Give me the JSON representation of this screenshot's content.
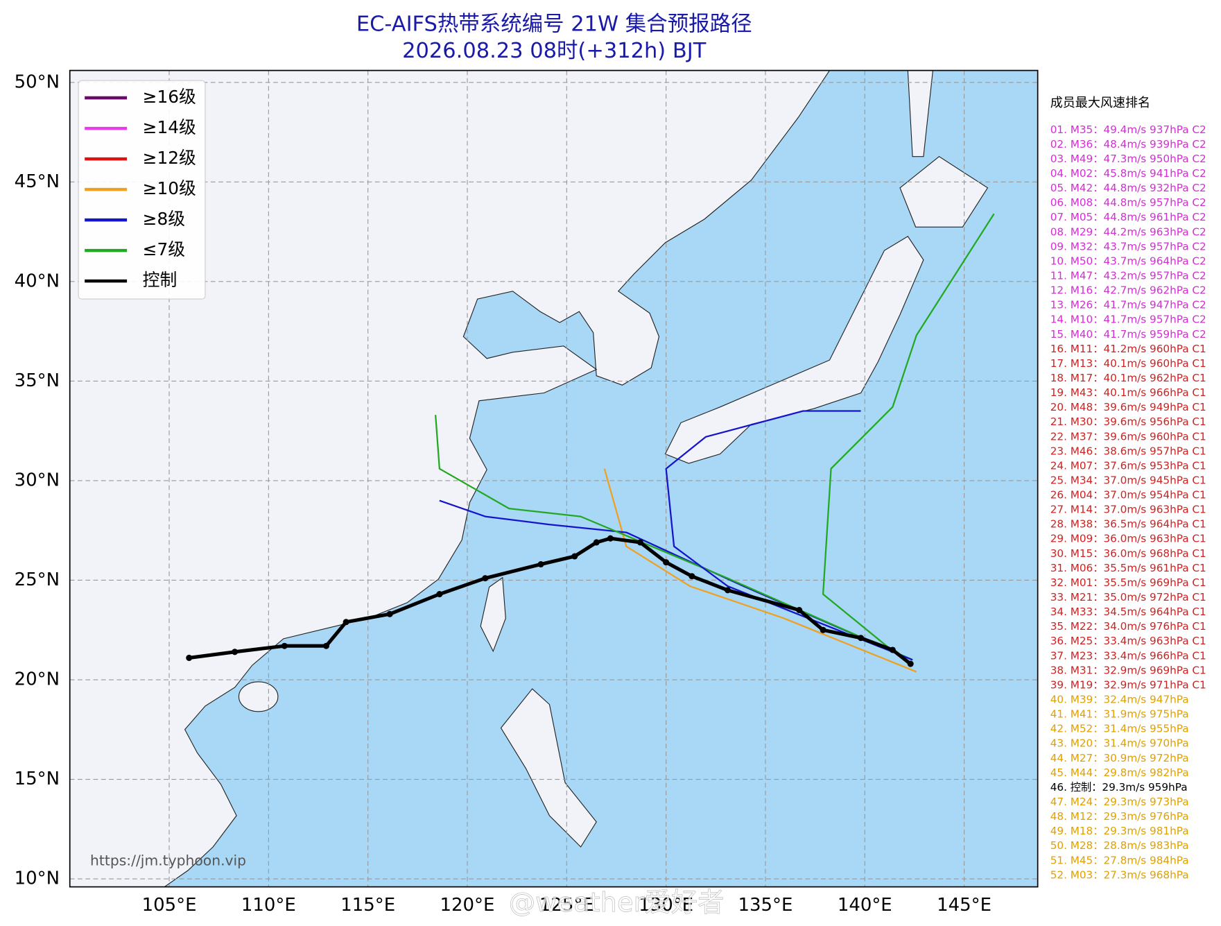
{
  "chart_data": {
    "type": "track-map",
    "title": "EC-AIFS热带系统编号 21W 集合预报路径",
    "subtitle": "2026.08.23 08时(+312h) BJT",
    "xlim": [
      100.0,
      148.7
    ],
    "ylim": [
      9.6,
      50.6
    ],
    "xticks": [
      {
        "value": 105,
        "label": "105°E"
      },
      {
        "value": 110,
        "label": "110°E"
      },
      {
        "value": 115,
        "label": "115°E"
      },
      {
        "value": 120,
        "label": "120°E"
      },
      {
        "value": 125,
        "label": "125°E"
      },
      {
        "value": 130,
        "label": "130°E"
      },
      {
        "value": 135,
        "label": "135°E"
      },
      {
        "value": 140,
        "label": "140°E"
      },
      {
        "value": 145,
        "label": "145°E"
      }
    ],
    "yticks": [
      {
        "value": 10,
        "label": "10°N"
      },
      {
        "value": 15,
        "label": "15°N"
      },
      {
        "value": 20,
        "label": "20°N"
      },
      {
        "value": 25,
        "label": "25°N"
      },
      {
        "value": 30,
        "label": "30°N"
      },
      {
        "value": 35,
        "label": "35°N"
      },
      {
        "value": 40,
        "label": "40°N"
      },
      {
        "value": 45,
        "label": "45°N"
      },
      {
        "value": 50,
        "label": "50°N"
      }
    ],
    "grid": true,
    "legend": {
      "position": "upper left",
      "entries": [
        {
          "label": "≥16级",
          "color": "#6b0a6b"
        },
        {
          "label": "≥14级",
          "color": "#e83ce8"
        },
        {
          "label": "≥12级",
          "color": "#e01010"
        },
        {
          "label": "≥10级",
          "color": "#f0a020"
        },
        {
          "label": "≥8级",
          "color": "#1414c8"
        },
        {
          "label": "≤7级",
          "color": "#22a822"
        },
        {
          "label": "控制",
          "color": "#000000"
        }
      ]
    },
    "control_track": {
      "color": "#000000",
      "lon": [
        106.0,
        108.3,
        110.8,
        112.9,
        113.9,
        116.1,
        118.6,
        120.9,
        123.7,
        125.4,
        126.5,
        127.2,
        128.7,
        130.0,
        131.3,
        133.1,
        136.7,
        137.9,
        139.8,
        141.4,
        142.3
      ],
      "lat": [
        21.1,
        21.4,
        21.7,
        21.7,
        22.9,
        23.3,
        24.3,
        25.1,
        25.8,
        26.2,
        26.9,
        27.1,
        26.9,
        25.9,
        25.2,
        24.5,
        23.5,
        22.5,
        22.1,
        21.5,
        20.8
      ]
    },
    "member_tracks": [
      {
        "color": "#22a822",
        "lon": [
          142.2,
          137.9,
          138.3,
          141.4,
          142.6,
          146.5
        ],
        "lat": [
          20.8,
          24.3,
          30.6,
          33.7,
          37.3,
          43.4
        ]
      },
      {
        "color": "#f0a020",
        "lon": [
          142.6,
          135.9,
          131.2,
          128.0,
          126.9
        ],
        "lat": [
          20.4,
          23.1,
          24.7,
          26.7,
          30.6
        ]
      },
      {
        "color": "#1414c8",
        "lon": [
          142.4,
          133.9,
          128.0,
          124.1,
          120.9,
          118.6
        ],
        "lat": [
          21.0,
          24.7,
          27.4,
          27.8,
          28.2,
          29.0
        ]
      },
      {
        "color": "#22a822",
        "lon": [
          142.4,
          133.1,
          125.7,
          122.1,
          118.6,
          118.4
        ],
        "lat": [
          21.0,
          25.1,
          28.2,
          28.6,
          30.6,
          33.3
        ]
      },
      {
        "color": "#1414c8",
        "lon": [
          142.4,
          133.1,
          130.4,
          130.0,
          132.0,
          136.9,
          139.8
        ],
        "lat": [
          21.0,
          24.7,
          26.7,
          30.6,
          32.2,
          33.5,
          33.5
        ]
      }
    ],
    "source": "https://jm.typhoon.vip",
    "watermark": "@weather爱好者",
    "ranking": {
      "title": "成员最大风速排名",
      "items": [
        {
          "text": "01. M35：49.4m/s 937hPa C2",
          "color": "#d22ed2"
        },
        {
          "text": "02. M36：48.4m/s 939hPa C2",
          "color": "#d22ed2"
        },
        {
          "text": "03. M49：47.3m/s 950hPa C2",
          "color": "#d22ed2"
        },
        {
          "text": "04. M02：45.8m/s 941hPa C2",
          "color": "#d22ed2"
        },
        {
          "text": "05. M42：44.8m/s 932hPa C2",
          "color": "#d22ed2"
        },
        {
          "text": "06. M08：44.8m/s 957hPa C2",
          "color": "#d22ed2"
        },
        {
          "text": "07. M05：44.8m/s 961hPa C2",
          "color": "#d22ed2"
        },
        {
          "text": "08. M29：44.2m/s 963hPa C2",
          "color": "#d22ed2"
        },
        {
          "text": "09. M32：43.7m/s 957hPa C2",
          "color": "#d22ed2"
        },
        {
          "text": "10. M50：43.7m/s 964hPa C2",
          "color": "#d22ed2"
        },
        {
          "text": "11. M47：43.2m/s 957hPa C2",
          "color": "#d22ed2"
        },
        {
          "text": "12. M16：42.7m/s 962hPa C2",
          "color": "#d22ed2"
        },
        {
          "text": "13. M26：41.7m/s 947hPa C2",
          "color": "#d22ed2"
        },
        {
          "text": "14. M10：41.7m/s 957hPa C2",
          "color": "#d22ed2"
        },
        {
          "text": "15. M40：41.7m/s 959hPa C2",
          "color": "#d22ed2"
        },
        {
          "text": "16. M11：41.2m/s 960hPa C1",
          "color": "#cc2222"
        },
        {
          "text": "17. M13：40.1m/s 960hPa C1",
          "color": "#cc2222"
        },
        {
          "text": "18. M17：40.1m/s 962hPa C1",
          "color": "#cc2222"
        },
        {
          "text": "19. M43：40.1m/s 966hPa C1",
          "color": "#cc2222"
        },
        {
          "text": "20. M48：39.6m/s 949hPa C1",
          "color": "#cc2222"
        },
        {
          "text": "21. M30：39.6m/s 956hPa C1",
          "color": "#cc2222"
        },
        {
          "text": "22. M37：39.6m/s 960hPa C1",
          "color": "#cc2222"
        },
        {
          "text": "23. M46：38.6m/s 957hPa C1",
          "color": "#cc2222"
        },
        {
          "text": "24. M07：37.6m/s 953hPa C1",
          "color": "#cc2222"
        },
        {
          "text": "25. M34：37.0m/s 945hPa C1",
          "color": "#cc2222"
        },
        {
          "text": "26. M04：37.0m/s 954hPa C1",
          "color": "#cc2222"
        },
        {
          "text": "27. M14：37.0m/s 963hPa C1",
          "color": "#cc2222"
        },
        {
          "text": "28. M38：36.5m/s 964hPa C1",
          "color": "#cc2222"
        },
        {
          "text": "29. M09：36.0m/s 963hPa C1",
          "color": "#cc2222"
        },
        {
          "text": "30. M15：36.0m/s 968hPa C1",
          "color": "#cc2222"
        },
        {
          "text": "31. M06：35.5m/s 961hPa C1",
          "color": "#cc2222"
        },
        {
          "text": "32. M01：35.5m/s 969hPa C1",
          "color": "#cc2222"
        },
        {
          "text": "33. M21：35.0m/s 972hPa C1",
          "color": "#cc2222"
        },
        {
          "text": "34. M33：34.5m/s 964hPa C1",
          "color": "#cc2222"
        },
        {
          "text": "35. M22：34.0m/s 976hPa C1",
          "color": "#cc2222"
        },
        {
          "text": "36. M25：33.4m/s 963hPa C1",
          "color": "#cc2222"
        },
        {
          "text": "37. M23：33.4m/s 966hPa C1",
          "color": "#cc2222"
        },
        {
          "text": "38. M31：32.9m/s 969hPa C1",
          "color": "#cc2222"
        },
        {
          "text": "39. M19：32.9m/s 971hPa C1",
          "color": "#cc2222"
        },
        {
          "text": "40. M39：32.4m/s 947hPa",
          "color": "#e0a000"
        },
        {
          "text": "41. M41：31.9m/s 975hPa",
          "color": "#e0a000"
        },
        {
          "text": "42. M52：31.4m/s 955hPa",
          "color": "#e0a000"
        },
        {
          "text": "43. M20：31.4m/s 970hPa",
          "color": "#e0a000"
        },
        {
          "text": "44. M27：30.9m/s 972hPa",
          "color": "#e0a000"
        },
        {
          "text": "45. M44：29.8m/s 982hPa",
          "color": "#e0a000"
        },
        {
          "text": "46. 控制：29.3m/s 959hPa",
          "color": "#000000"
        },
        {
          "text": "47. M24：29.3m/s 973hPa",
          "color": "#e0a000"
        },
        {
          "text": "48. M12：29.3m/s 976hPa",
          "color": "#e0a000"
        },
        {
          "text": "49. M18：29.3m/s 981hPa",
          "color": "#e0a000"
        },
        {
          "text": "50. M28：28.8m/s 983hPa",
          "color": "#e0a000"
        },
        {
          "text": "51. M45：27.8m/s 984hPa",
          "color": "#e0a000"
        },
        {
          "text": "52. M03：27.3m/s 968hPa",
          "color": "#e0a000"
        }
      ]
    }
  }
}
